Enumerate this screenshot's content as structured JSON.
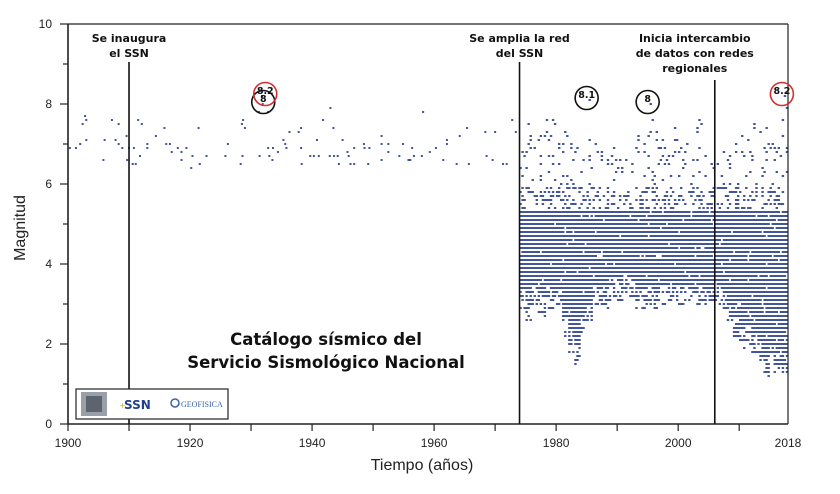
{
  "chart_data": {
    "type": "scatter",
    "title": "Catálogo sísmico del Servicio Sismológico Nacional",
    "title_lines": [
      "Catálogo sísmico del",
      "Servicio Sismológico Nacional"
    ],
    "xlabel": "Tiempo (años)",
    "ylabel": "Magnitud",
    "xlim": [
      1900,
      2018
    ],
    "ylim": [
      0,
      10
    ],
    "x_ticks": [
      "1900",
      "1920",
      "1940",
      "1960",
      "1980",
      "2000",
      "2018"
    ],
    "y_ticks": [
      "0",
      "2",
      "4",
      "6",
      "8",
      "10"
    ],
    "grid": false,
    "point_color": "#44569a",
    "points_pre_1974": [
      [
        1900.3,
        6.9
      ],
      [
        1901.3,
        6.9
      ],
      [
        1902,
        7.0
      ],
      [
        1902.4,
        7.5
      ],
      [
        1902.8,
        7.7
      ],
      [
        1903,
        7.6
      ],
      [
        1903,
        7.1
      ],
      [
        1905.8,
        6.6
      ],
      [
        1906,
        7.1
      ],
      [
        1907.2,
        7.6
      ],
      [
        1907.8,
        7.1
      ],
      [
        1908.3,
        7.5
      ],
      [
        1908.3,
        7.0
      ],
      [
        1908.9,
        6.9
      ],
      [
        1909.6,
        7.2
      ],
      [
        1909.7,
        6.6
      ],
      [
        1910,
        6.9
      ],
      [
        1910.6,
        6.5
      ],
      [
        1911.1,
        6.5
      ],
      [
        1910.8,
        6.9
      ],
      [
        1911.5,
        7.6
      ],
      [
        1911.8,
        6.7
      ],
      [
        1912.1,
        7.5
      ],
      [
        1913,
        7.0
      ],
      [
        1913,
        6.9
      ],
      [
        1914.4,
        7.2
      ],
      [
        1915.8,
        7.4
      ],
      [
        1916.1,
        7.0
      ],
      [
        1916.7,
        7.0
      ],
      [
        1917,
        6.8
      ],
      [
        1918,
        6.9
      ],
      [
        1918.6,
        6.8
      ],
      [
        1918.6,
        6.6
      ],
      [
        1919.4,
        6.9
      ],
      [
        1920.2,
        6.4
      ],
      [
        1920.4,
        6.7
      ],
      [
        1921.4,
        7.4
      ],
      [
        1921.6,
        6.5
      ],
      [
        1922.7,
        6.7
      ],
      [
        1925.8,
        6.7
      ],
      [
        1926.2,
        7.0
      ],
      [
        1928.3,
        6.5
      ],
      [
        1928.5,
        7.5
      ],
      [
        1928.7,
        7.6
      ],
      [
        1929,
        7.4
      ],
      [
        1928.6,
        6.7
      ],
      [
        1931.3,
        7.8
      ],
      [
        1932.8,
        7.8
      ],
      [
        1931.8,
        8.2
      ],
      [
        1931.9,
        8.0
      ],
      [
        1931.4,
        6.7
      ],
      [
        1932.8,
        6.9
      ],
      [
        1933,
        6.7
      ],
      [
        1933.6,
        6.9
      ],
      [
        1933.5,
        6.6
      ],
      [
        1934.4,
        6.8
      ],
      [
        1935.3,
        7.1
      ],
      [
        1935.6,
        7.0
      ],
      [
        1935.8,
        6.9
      ],
      [
        1936.3,
        7.3
      ],
      [
        1937.8,
        7.3
      ],
      [
        1938.2,
        7.4
      ],
      [
        1938.2,
        6.9
      ],
      [
        1938.3,
        6.5
      ],
      [
        1939.7,
        6.7
      ],
      [
        1940.3,
        6.7
      ],
      [
        1940.8,
        7.1
      ],
      [
        1941.1,
        6.7
      ],
      [
        1941.8,
        7.6
      ],
      [
        1943,
        7.9
      ],
      [
        1942.9,
        6.7
      ],
      [
        1943.5,
        7.4
      ],
      [
        1943.6,
        6.7
      ],
      [
        1944.2,
        6.7
      ],
      [
        1944.4,
        6.5
      ],
      [
        1945,
        7.1
      ],
      [
        1945.8,
        6.8
      ],
      [
        1946,
        6.7
      ],
      [
        1946.3,
        6.5
      ],
      [
        1946.9,
        6.9
      ],
      [
        1946.9,
        6.5
      ],
      [
        1948.5,
        7.0
      ],
      [
        1948.6,
        6.9
      ],
      [
        1949.2,
        6.5
      ],
      [
        1949.4,
        6.9
      ],
      [
        1951.4,
        7.2
      ],
      [
        1951.4,
        7.0
      ],
      [
        1951.4,
        6.6
      ],
      [
        1952.5,
        7.0
      ],
      [
        1952.5,
        6.8
      ],
      [
        1954.3,
        6.7
      ],
      [
        1954.9,
        7.0
      ],
      [
        1955.8,
        6.6
      ],
      [
        1956.1,
        6.6
      ],
      [
        1956.4,
        6.9
      ],
      [
        1956.7,
        6.7
      ],
      [
        1958,
        6.7
      ],
      [
        1958.2,
        7.8
      ],
      [
        1959.3,
        6.8
      ],
      [
        1960.3,
        6.9
      ],
      [
        1961.5,
        6.6
      ],
      [
        1962.1,
        7.1
      ],
      [
        1962.1,
        7.0
      ],
      [
        1963.7,
        6.5
      ],
      [
        1964.2,
        7.2
      ],
      [
        1965.4,
        7.4
      ],
      [
        1965.7,
        6.5
      ],
      [
        1968.4,
        7.3
      ],
      [
        1970,
        7.3
      ],
      [
        1968.6,
        6.7
      ],
      [
        1969.6,
        6.6
      ],
      [
        1971.3,
        6.5
      ],
      [
        1971.9,
        6.5
      ],
      [
        1972.8,
        7.6
      ],
      [
        1973.4,
        7.3
      ]
    ],
    "magnitude_range_by_year_1974_2017": [
      [
        1974,
        2.9,
        6.8
      ],
      [
        1975,
        2.6,
        7.5
      ],
      [
        1976,
        3.0,
        6.9
      ],
      [
        1977,
        2.8,
        7.2
      ],
      [
        1978,
        2.7,
        7.6
      ],
      [
        1979,
        2.9,
        7.6
      ],
      [
        1980,
        2.9,
        7.0
      ],
      [
        1981,
        2.2,
        7.3
      ],
      [
        1982,
        1.8,
        7.0
      ],
      [
        1983,
        1.5,
        6.9
      ],
      [
        1984,
        2.3,
        6.6
      ],
      [
        1985,
        2.5,
        8.1
      ],
      [
        1986,
        3.0,
        7.0
      ],
      [
        1987,
        3.0,
        6.8
      ],
      [
        1988,
        2.9,
        6.6
      ],
      [
        1989,
        3.2,
        6.9
      ],
      [
        1990,
        3.1,
        6.6
      ],
      [
        1991,
        3.3,
        6.6
      ],
      [
        1992,
        3.2,
        6.5
      ],
      [
        1993,
        2.9,
        7.2
      ],
      [
        1994,
        2.9,
        7.0
      ],
      [
        1995,
        3.0,
        8.0
      ],
      [
        1996,
        2.8,
        7.3
      ],
      [
        1997,
        3.0,
        7.1
      ],
      [
        1998,
        3.1,
        6.7
      ],
      [
        1999,
        3.0,
        7.4
      ],
      [
        2000,
        3.0,
        6.9
      ],
      [
        2001,
        3.0,
        7.0
      ],
      [
        2002,
        3.1,
        6.6
      ],
      [
        2003,
        3.0,
        7.6
      ],
      [
        2004,
        3.0,
        6.7
      ],
      [
        2005,
        3.0,
        6.5
      ],
      [
        2006,
        3.0,
        6.5
      ],
      [
        2007,
        2.9,
        6.8
      ],
      [
        2008,
        2.5,
        6.7
      ],
      [
        2009,
        2.2,
        7.0
      ],
      [
        2010,
        1.9,
        7.2
      ],
      [
        2011,
        2.0,
        7.1
      ],
      [
        2012,
        1.7,
        7.5
      ],
      [
        2013,
        1.6,
        7.3
      ],
      [
        2014,
        1.2,
        7.4
      ],
      [
        2015,
        1.3,
        7.0
      ],
      [
        2016,
        1.4,
        6.9
      ],
      [
        2017,
        1.3,
        8.2
      ]
    ],
    "event_lines": [
      {
        "year": 1910,
        "label_lines": [
          "Se inaugura",
          "el SSN"
        ]
      },
      {
        "year": 1974,
        "label_lines": [
          "Se amplia la red",
          "del SSN"
        ]
      },
      {
        "year": 2006,
        "label_lines": [
          "Inicia intercambio",
          "de datos con redes",
          "regionales"
        ]
      }
    ],
    "annotations": [
      {
        "year": 1932,
        "magnitude": 8.0,
        "label": "8",
        "color": "#111111"
      },
      {
        "year": 1932,
        "magnitude": 8.2,
        "label": "8.2",
        "color": "#d03030"
      },
      {
        "year": 1985,
        "magnitude": 8.1,
        "label": "8.1",
        "color": "#111111"
      },
      {
        "year": 1995,
        "magnitude": 8.0,
        "label": "8",
        "color": "#111111"
      },
      {
        "year": 2017,
        "magnitude": 8.2,
        "label": "8.2",
        "color": "#d03030"
      }
    ]
  },
  "logos": {
    "ssn": "SSN",
    "geofisica": "GEOFISICA"
  }
}
